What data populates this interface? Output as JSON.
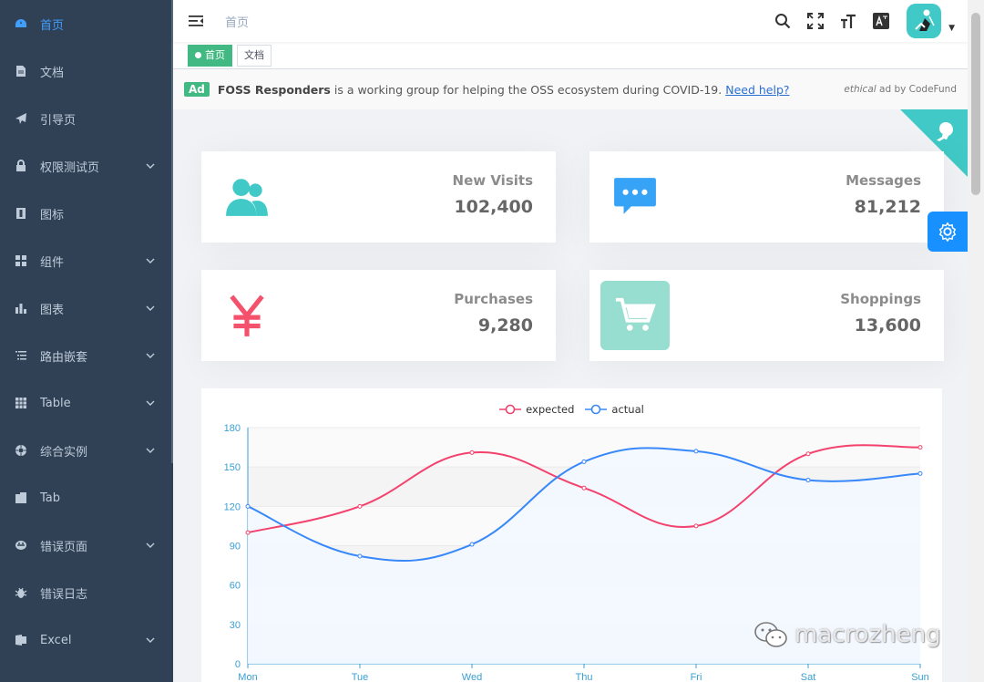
{
  "sidebar": {
    "items": [
      {
        "label": "首页",
        "icon": "dashboard-icon",
        "active": true,
        "submenu": false
      },
      {
        "label": "文档",
        "icon": "document-icon",
        "active": false,
        "submenu": false
      },
      {
        "label": "引导页",
        "icon": "guide-icon",
        "active": false,
        "submenu": false
      },
      {
        "label": "权限测试页",
        "icon": "lock-icon",
        "active": false,
        "submenu": true
      },
      {
        "label": "图标",
        "icon": "icon-icon",
        "active": false,
        "submenu": false
      },
      {
        "label": "组件",
        "icon": "component-icon",
        "active": false,
        "submenu": true
      },
      {
        "label": "图表",
        "icon": "chart-icon",
        "active": false,
        "submenu": true
      },
      {
        "label": "路由嵌套",
        "icon": "nested-icon",
        "active": false,
        "submenu": true
      },
      {
        "label": "Table",
        "icon": "table-icon",
        "active": false,
        "submenu": true
      },
      {
        "label": "综合实例",
        "icon": "example-icon",
        "active": false,
        "submenu": true
      },
      {
        "label": "Tab",
        "icon": "tab-icon",
        "active": false,
        "submenu": false
      },
      {
        "label": "错误页面",
        "icon": "error-page-icon",
        "active": false,
        "submenu": true
      },
      {
        "label": "错误日志",
        "icon": "bug-icon",
        "active": false,
        "submenu": false
      },
      {
        "label": "Excel",
        "icon": "excel-icon",
        "active": false,
        "submenu": true
      }
    ]
  },
  "navbar": {
    "breadcrumb": "首页",
    "icons": [
      "search-icon",
      "fullscreen-icon",
      "size-icon",
      "language-icon"
    ]
  },
  "tags": [
    {
      "label": "首页",
      "active": true
    },
    {
      "label": "文档",
      "active": false
    }
  ],
  "ad": {
    "badge": "Ad",
    "strong": "FOSS Responders",
    "text": "is a working group for helping the OSS ecosystem during COVID-19.",
    "link": "Need help?",
    "right_em": "ethical",
    "right_text": "ad by CodeFund"
  },
  "cards": [
    {
      "label": "New Visits",
      "value": "102,400",
      "icon": "people-icon",
      "color": "#40c9c6"
    },
    {
      "label": "Messages",
      "value": "81,212",
      "icon": "message-icon",
      "color": "#36a3f7"
    },
    {
      "label": "Purchases",
      "value": "9,280",
      "icon": "money-icon",
      "color": "#f4516c"
    },
    {
      "label": "Shoppings",
      "value": "13,600",
      "icon": "shopping-icon",
      "color": "#34bfa3"
    }
  ],
  "chart_data": {
    "type": "line",
    "categories": [
      "Mon",
      "Tue",
      "Wed",
      "Thu",
      "Fri",
      "Sat",
      "Sun"
    ],
    "series": [
      {
        "name": "expected",
        "values": [
          100,
          120,
          161,
          134,
          105,
          160,
          165
        ],
        "color": "#f3426d"
      },
      {
        "name": "actual",
        "values": [
          120,
          82,
          91,
          154,
          162,
          140,
          145
        ],
        "color": "#3888fa"
      }
    ],
    "yticks": [
      0,
      30,
      60,
      90,
      120,
      150,
      180
    ],
    "ylim": [
      0,
      180
    ],
    "legend": "top-center"
  },
  "watermark": "macrozheng"
}
